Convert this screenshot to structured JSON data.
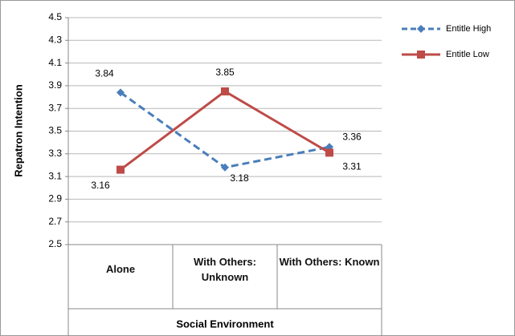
{
  "chart_data": {
    "type": "line",
    "x_label": "Social Environment",
    "y_label": "Repatron Intention",
    "categories": [
      "Alone",
      "With Others: Unknown",
      "With Others: Known"
    ],
    "series": [
      {
        "name": "Entitle High",
        "color": "#4a7ebb",
        "dashed": true,
        "marker": "diamond",
        "values": [
          3.84,
          3.18,
          3.36
        ]
      },
      {
        "name": "Entitle Low",
        "color": "#be4b48",
        "dashed": false,
        "marker": "square",
        "values": [
          3.16,
          3.85,
          3.31
        ]
      }
    ],
    "ylim": [
      2.5,
      4.5
    ],
    "yticks": [
      2.5,
      2.7,
      2.9,
      3.1,
      3.3,
      3.5,
      3.7,
      3.9,
      4.1,
      4.3,
      4.5
    ],
    "grid": true,
    "legend_position": "right"
  }
}
